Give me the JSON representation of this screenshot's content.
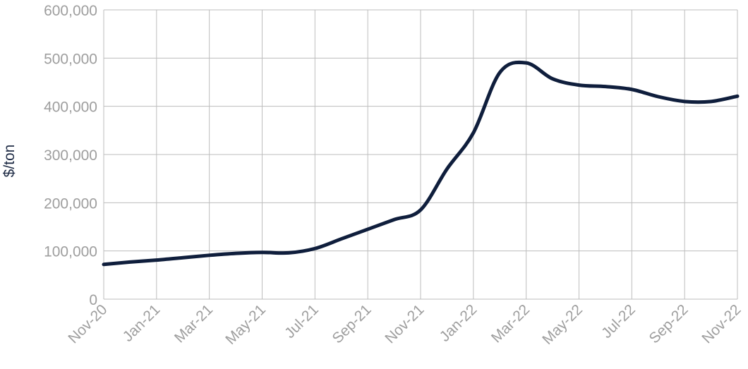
{
  "chart_data": {
    "type": "line",
    "title": "",
    "xlabel": "",
    "ylabel": "$/ton",
    "ylim": [
      0,
      600000
    ],
    "yticks": [
      0,
      100000,
      200000,
      300000,
      400000,
      500000,
      600000
    ],
    "ytick_labels": [
      "0",
      "100,000",
      "200,000",
      "300,000",
      "400,000",
      "500,000",
      "600,000"
    ],
    "xtick_labels": [
      "Nov-20",
      "Jan-21",
      "Mar-21",
      "May-21",
      "Jul-21",
      "Sep-21",
      "Nov-21",
      "Jan-22",
      "Mar-22",
      "May-22",
      "Jul-22",
      "Sep-22",
      "Nov-22"
    ],
    "grid": true,
    "legend": "none",
    "series": [
      {
        "color": "#0f1e3c",
        "x": [
          "Nov-20",
          "Dec-20",
          "Jan-21",
          "Feb-21",
          "Mar-21",
          "Apr-21",
          "May-21",
          "Jun-21",
          "Jul-21",
          "Aug-21",
          "Sep-21",
          "Oct-21",
          "Nov-21",
          "Dec-21",
          "Jan-22",
          "Feb-22",
          "Mar-22",
          "Apr-22",
          "May-22",
          "Jun-22",
          "Jul-22",
          "Aug-22",
          "Sep-22",
          "Oct-22",
          "Nov-22"
        ],
        "values": [
          72000,
          77000,
          81000,
          86000,
          91000,
          95000,
          97000,
          96000,
          105000,
          125000,
          145000,
          165000,
          185000,
          270000,
          345000,
          470000,
          490000,
          457000,
          444000,
          441000,
          435000,
          420000,
          410000,
          410000,
          421000
        ]
      }
    ]
  }
}
